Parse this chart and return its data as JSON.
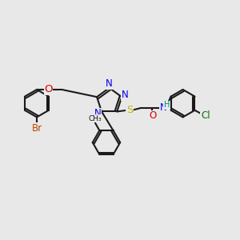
{
  "bg_color": "#e8e8e8",
  "bond_color": "#1a1a1a",
  "bond_lw": 1.5,
  "colors": {
    "N": "#0000ee",
    "O": "#dd0000",
    "S": "#bbbb00",
    "Br": "#bb4400",
    "Cl": "#007700",
    "H": "#008888",
    "C": "#111111"
  },
  "fs": 8.5,
  "fss": 7.0
}
